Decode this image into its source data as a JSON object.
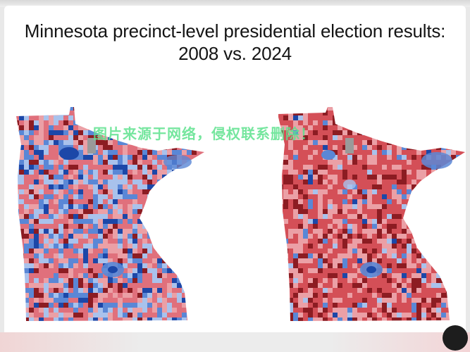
{
  "title_line1": "Minnesota precinct-level presidential election results:",
  "title_line2": "2008 vs. 2024",
  "maps": [
    {
      "id": "2008",
      "red_share": 0.5,
      "base": "#e0707c",
      "blue_share": 0.42
    },
    {
      "id": "2024",
      "red_share": 0.82,
      "base": "#c8303a",
      "blue_share": 0.1
    }
  ],
  "colors": {
    "dark_blue": "#1c47a8",
    "blue": "#5a87d6",
    "light_blue": "#a9c2ec",
    "light_red": "#eba0a6",
    "red": "#d44f57",
    "dark_red": "#8c1c22",
    "gray": "#9a9a9a"
  },
  "watermark": "图片来源于网络，侵权联系删除！"
}
